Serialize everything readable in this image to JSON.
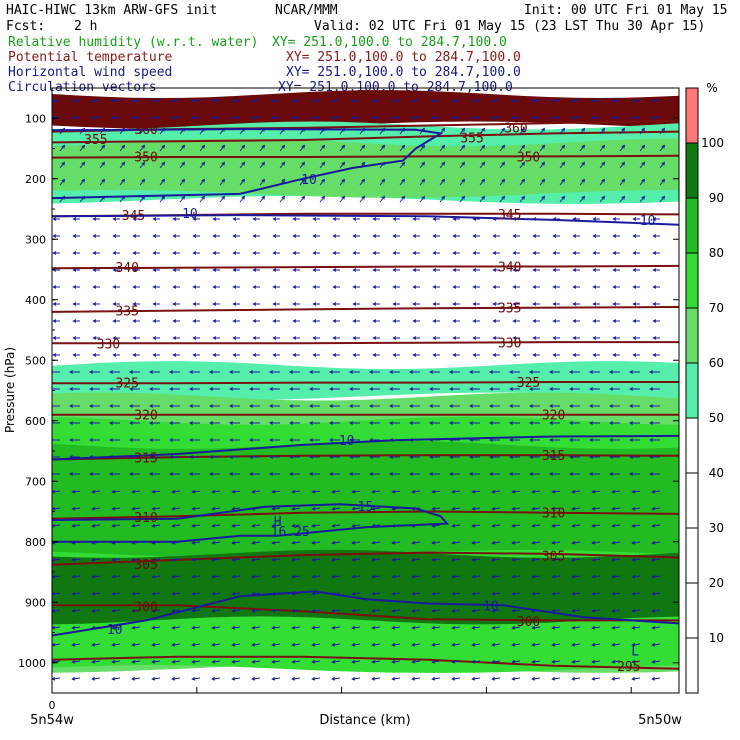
{
  "header": {
    "model": "HAIC-HIWC 13km ARW-GFS init",
    "org": "NCAR/MMM",
    "init": "Init: 00 UTC Fri 01 May 15",
    "fcst_label": "Fcst:",
    "fcst_value": "2 h",
    "valid": "Valid: 02 UTC Fri 01 May 15 (23 LST Thu 30 Apr 15)"
  },
  "legend": [
    {
      "name": "Relative humidity (w.r.t. water)",
      "xy": "XY= 251.0,100.0 to 284.7,100.0",
      "color": "#18a018"
    },
    {
      "name": "Potential temperature",
      "xy": "XY= 251.0,100.0 to 284.7,100.0",
      "color": "#8b1a1a"
    },
    {
      "name": "Horizontal wind speed",
      "xy": "XY= 251.0,100.0 to 284.7,100.0",
      "color": "#1a1a8b"
    },
    {
      "name": "Circulation vectors",
      "xy": "XY= 251.0,100.0 to 284.7,100.0",
      "color": "#1a1a8b"
    }
  ],
  "chart_data": {
    "type": "heatmap",
    "xlabel": "Distance (km)",
    "ylabel": "Pressure (hPa)",
    "x_tick_labels": {
      "left": "5n54w",
      "right": "5n50w",
      "origin": "0"
    },
    "y_ticks": [
      100,
      200,
      300,
      400,
      500,
      600,
      700,
      800,
      900,
      1000
    ],
    "ylim": [
      50,
      1050
    ],
    "colorbar": {
      "unit": "%",
      "ticks": [
        10,
        20,
        30,
        40,
        50,
        60,
        70,
        80,
        90,
        100
      ],
      "bins": [
        {
          "from": 50,
          "to": 60,
          "color": "#55eeaa"
        },
        {
          "from": 60,
          "to": 70,
          "color": "#66dd66"
        },
        {
          "from": 70,
          "to": 80,
          "color": "#33dd33"
        },
        {
          "from": 80,
          "to": 90,
          "color": "#22bb22"
        },
        {
          "from": 90,
          "to": 100,
          "color": "#117711"
        },
        {
          "from": 100,
          "to": 110,
          "color": "#ff7777"
        }
      ]
    },
    "rh_layers": [
      {
        "p_top": 60,
        "p_bottom": 112,
        "color": "#6b0a0a"
      },
      {
        "p_top": 112,
        "p_bottom": 235,
        "color": "#55eeaa"
      },
      {
        "p_top": 140,
        "p_bottom": 225,
        "color": "#66dd66"
      },
      {
        "p_top": 508,
        "p_bottom": 560,
        "color": "#55eeaa"
      },
      {
        "p_top": 560,
        "p_bottom": 1010,
        "color": "#66dd66"
      },
      {
        "p_top": 600,
        "p_bottom": 1010,
        "color": "#33dd33"
      },
      {
        "p_top": 640,
        "p_bottom": 820,
        "color": "#22bb22"
      },
      {
        "p_top": 820,
        "p_bottom": 990,
        "color": "#117711"
      },
      {
        "p_top": 930,
        "p_bottom": 1010,
        "color": "#33dd33"
      }
    ],
    "theta_lines": [
      {
        "label": "360",
        "p": [
          122,
          118,
          116,
          112,
          108,
          104
        ]
      },
      {
        "label": "355",
        "p": [
          140,
          138,
          136,
          130,
          125,
          122
        ]
      },
      {
        "label": "350",
        "p": [
          165,
          164,
          164,
          163,
          163,
          162
        ]
      },
      {
        "label": "345",
        "p": [
          262,
          260,
          258,
          258,
          258,
          259
        ]
      },
      {
        "label": "340",
        "p": [
          348,
          347,
          346,
          345,
          345,
          344
        ]
      },
      {
        "label": "335",
        "p": [
          420,
          418,
          416,
          414,
          413,
          412
        ]
      },
      {
        "label": "330",
        "p": [
          472,
          472,
          472,
          471,
          470,
          470
        ]
      },
      {
        "label": "325",
        "p": [
          538,
          538,
          537,
          537,
          536,
          536
        ]
      },
      {
        "label": "320",
        "p": [
          590,
          590,
          590,
          590,
          590,
          590
        ]
      },
      {
        "label": "315",
        "p": [
          664,
          660,
          658,
          657,
          657,
          658
        ]
      },
      {
        "label": "310",
        "p": [
          762,
          758,
          752,
          750,
          752,
          754
        ]
      },
      {
        "label": "305",
        "p": [
          838,
          830,
          822,
          818,
          820,
          826
        ]
      },
      {
        "label": "300",
        "p": [
          905,
          905,
          915,
          928,
          930,
          930
        ]
      },
      {
        "label": "295",
        "p": [
          995,
          990,
          990,
          995,
          1005,
          1010
        ]
      }
    ],
    "theta_label_positions": [
      {
        "label": "360",
        "x": 0.15,
        "p": 118
      },
      {
        "label": "360",
        "x": 0.74,
        "p": 115
      },
      {
        "label": "355",
        "x": 0.07,
        "p": 134
      },
      {
        "label": "355",
        "x": 0.67,
        "p": 132
      },
      {
        "label": "350",
        "x": 0.15,
        "p": 163
      },
      {
        "label": "350",
        "x": 0.76,
        "p": 163
      },
      {
        "label": "345",
        "x": 0.13,
        "p": 260
      },
      {
        "label": "345",
        "x": 0.73,
        "p": 258
      },
      {
        "label": "340",
        "x": 0.12,
        "p": 346
      },
      {
        "label": "340",
        "x": 0.73,
        "p": 345
      },
      {
        "label": "335",
        "x": 0.12,
        "p": 418
      },
      {
        "label": "335",
        "x": 0.73,
        "p": 413
      },
      {
        "label": "330",
        "x": 0.09,
        "p": 472
      },
      {
        "label": "330",
        "x": 0.73,
        "p": 471
      },
      {
        "label": "325",
        "x": 0.12,
        "p": 537
      },
      {
        "label": "325",
        "x": 0.76,
        "p": 536
      },
      {
        "label": "320",
        "x": 0.15,
        "p": 590
      },
      {
        "label": "320",
        "x": 0.8,
        "p": 590
      },
      {
        "label": "315",
        "x": 0.15,
        "p": 661
      },
      {
        "label": "315",
        "x": 0.8,
        "p": 657
      },
      {
        "label": "310",
        "x": 0.15,
        "p": 759
      },
      {
        "label": "310",
        "x": 0.8,
        "p": 752
      },
      {
        "label": "305",
        "x": 0.15,
        "p": 837
      },
      {
        "label": "305",
        "x": 0.8,
        "p": 823
      },
      {
        "label": "300",
        "x": 0.15,
        "p": 907
      },
      {
        "label": "300",
        "x": 0.76,
        "p": 931
      },
      {
        "label": "295",
        "x": 0.92,
        "p": 1005
      }
    ],
    "wind_contours": [
      {
        "label": "10",
        "points": [
          [
            0,
            120
          ],
          [
            0.3,
            118
          ],
          [
            0.58,
            119
          ],
          [
            0.62,
            125
          ],
          [
            0.58,
            150
          ],
          [
            0.56,
            170
          ],
          [
            0.48,
            182
          ],
          [
            0.4,
            200
          ],
          [
            0.3,
            225
          ],
          [
            0.0,
            232
          ]
        ]
      },
      {
        "label": "10",
        "points": [
          [
            0,
            262
          ],
          [
            0.3,
            260
          ],
          [
            0.6,
            262
          ],
          [
            0.8,
            268
          ],
          [
            1.0,
            276
          ]
        ]
      },
      {
        "label": "10",
        "points": [
          [
            0,
            664
          ],
          [
            0.2,
            655
          ],
          [
            0.4,
            640
          ],
          [
            0.55,
            632
          ],
          [
            0.8,
            626
          ],
          [
            1.0,
            625
          ]
        ]
      },
      {
        "label": "15",
        "points": [
          [
            0,
            764
          ],
          [
            0.2,
            762
          ],
          [
            0.34,
            742
          ],
          [
            0.46,
            738
          ],
          [
            0.58,
            745
          ],
          [
            0.62,
            758
          ],
          [
            0.63,
            770
          ],
          [
            0.5,
            776
          ],
          [
            0.36,
            790
          ],
          [
            0.3,
            790
          ],
          [
            0.2,
            800
          ],
          [
            0.0,
            800
          ]
        ]
      },
      {
        "label": "10",
        "points": [
          [
            0,
            955
          ],
          [
            0.15,
            930
          ],
          [
            0.3,
            890
          ],
          [
            0.42,
            882
          ],
          [
            0.5,
            895
          ],
          [
            0.6,
            902
          ],
          [
            0.72,
            905
          ],
          [
            0.85,
            925
          ],
          [
            1.0,
            935
          ]
        ]
      }
    ],
    "wind_labels": [
      {
        "label": "10",
        "x": 0.41,
        "p": 200
      },
      {
        "label": "10",
        "x": 0.22,
        "p": 257
      },
      {
        "label": "10",
        "x": 0.95,
        "p": 268
      },
      {
        "label": "10",
        "x": 0.47,
        "p": 632
      },
      {
        "label": "15",
        "x": 0.5,
        "p": 741
      },
      {
        "label": "16.25",
        "x": 0.38,
        "p": 782
      },
      {
        "label": "10",
        "x": 0.1,
        "p": 944
      },
      {
        "label": "10",
        "x": 0.7,
        "p": 905
      }
    ],
    "extrema": [
      {
        "label": "H",
        "x": 0.36,
        "p": 766
      },
      {
        "label": "L",
        "x": 0.93,
        "p": 980
      }
    ],
    "wind_field": [
      {
        "p_top": 100,
        "p_bottom": 260,
        "u": 0.4,
        "w": -0.5
      },
      {
        "p_top": 260,
        "p_bottom": 500,
        "u": -0.6,
        "w": 0.0
      },
      {
        "p_top": 500,
        "p_bottom": 700,
        "u": -0.9,
        "w": 0.0
      },
      {
        "p_top": 700,
        "p_bottom": 1000,
        "u": -0.7,
        "w": 0.1
      }
    ]
  }
}
